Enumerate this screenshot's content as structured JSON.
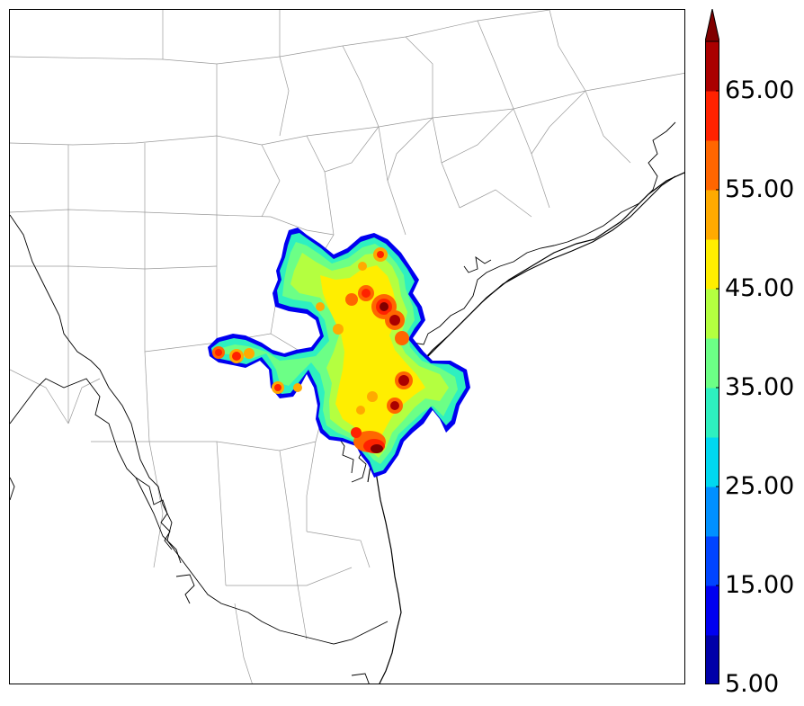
{
  "colorbar": {
    "labels": [
      "5.00",
      "15.00",
      "25.00",
      "35.00",
      "45.00",
      "55.00",
      "65.00"
    ],
    "levels": [
      5,
      10,
      15,
      20,
      25,
      30,
      35,
      40,
      45,
      50,
      55,
      60,
      65,
      70
    ],
    "colors": [
      "#0000a8",
      "#0000f0",
      "#0044ff",
      "#0090ff",
      "#00d8f0",
      "#2ef0c0",
      "#6cff86",
      "#b4ff40",
      "#ffee00",
      "#ffaa00",
      "#ff6600",
      "#ff2200",
      "#aa0000"
    ],
    "extend_color": "#800000",
    "extend": "max"
  },
  "map": {
    "county_line_color": "#999999",
    "coast_color": "#000000"
  }
}
